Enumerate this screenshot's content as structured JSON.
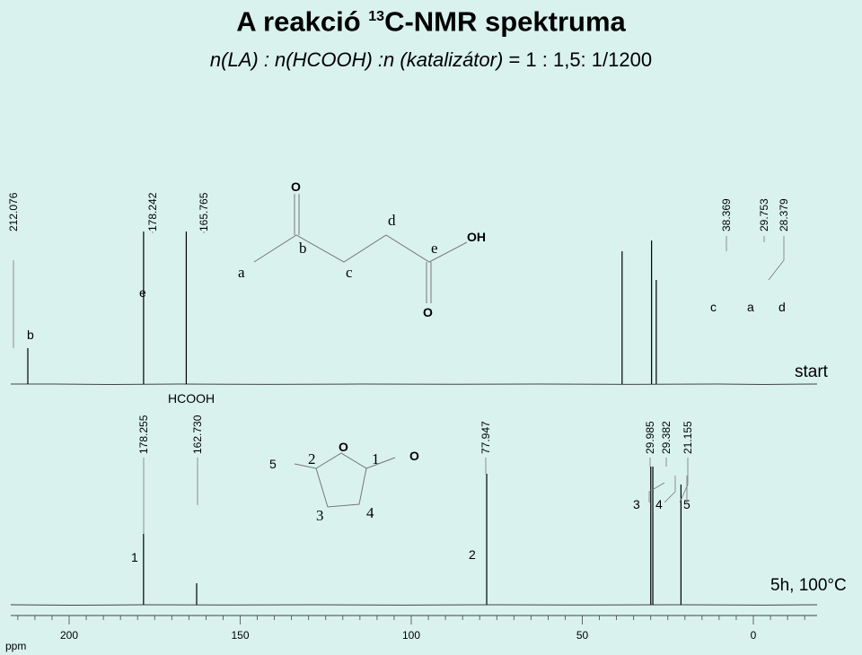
{
  "title": "A reakció",
  "title_sup": "13",
  "title_rest": "C-NMR spektruma",
  "subtitle": "n(LA) : n(HCOOH) :n (katalizátor)",
  "subtitle_ratio": "= 1 : 1,5: 1/1200",
  "chart_data": [
    {
      "type": "line",
      "name": "start",
      "label": "start",
      "peaks": [
        {
          "ppm": 212.076,
          "label": "212.076",
          "assign": "b"
        },
        {
          "ppm": 178.242,
          "label": "178.242",
          "assign": "e"
        },
        {
          "ppm": 165.765,
          "label": "165.765",
          "assign": ""
        },
        {
          "ppm": 38.369,
          "label": "38.369",
          "assign": "c"
        },
        {
          "ppm": 29.753,
          "label": "29.753",
          "assign": "a"
        },
        {
          "ppm": 28.379,
          "label": "28.379",
          "assign": "d"
        }
      ],
      "annotation": "HCOOH"
    },
    {
      "type": "line",
      "name": "5h, 100°C",
      "label": "5h, 100°C",
      "peaks": [
        {
          "ppm": 178.255,
          "label": "178.255",
          "assign": "1"
        },
        {
          "ppm": 162.73,
          "label": "162.730",
          "assign": ""
        },
        {
          "ppm": 77.947,
          "label": "77.947",
          "assign": "2"
        },
        {
          "ppm": 29.985,
          "label": "29.985",
          "assign": ""
        },
        {
          "ppm": 29.382,
          "label": "29.382",
          "assign": ""
        },
        {
          "ppm": 21.155,
          "label": "21.155",
          "assign": ""
        }
      ],
      "assign_group": [
        "3",
        "4",
        "5"
      ]
    }
  ],
  "x_axis": {
    "label": "ppm",
    "ticks": [
      200,
      150,
      100,
      50,
      0
    ],
    "reversed": true
  },
  "molecule_top": {
    "atoms": [
      "O",
      "OH",
      "O"
    ],
    "letters": [
      "a",
      "b",
      "c",
      "d",
      "e"
    ]
  },
  "molecule_bottom": {
    "atoms": [
      "O",
      "O"
    ],
    "numbers": [
      "5",
      "2",
      "1",
      "3",
      "4"
    ]
  }
}
